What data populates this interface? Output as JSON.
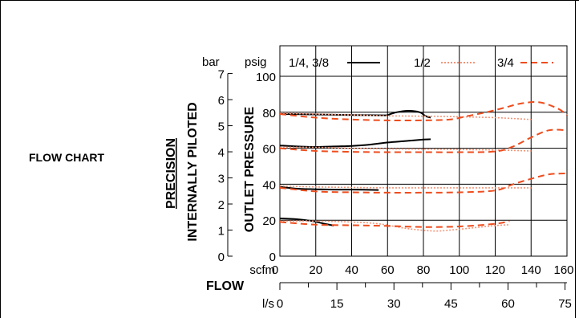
{
  "page": {
    "section_label": "FLOW CHART",
    "title_line1": "PRECISION",
    "title_line2": "INTERNALLY PILOTED"
  },
  "chart_data": {
    "type": "line",
    "ylabel": "OUTLET PRESSURE",
    "xlabel": "FLOW",
    "y_units": [
      "bar",
      "psig"
    ],
    "x_units": [
      "scfm",
      "l/s"
    ],
    "x_scfm_range": [
      0,
      160
    ],
    "x_scfm_ticks": [
      "0",
      "20",
      "40",
      "60",
      "80",
      "100",
      "120",
      "140",
      "160"
    ],
    "x_ls_ticks": [
      "0",
      "15",
      "30",
      "45",
      "60",
      "75"
    ],
    "y_psig_range": [
      0,
      100
    ],
    "y_psig_ticks": [
      "0",
      "20",
      "40",
      "60",
      "80",
      "100"
    ],
    "y_bar_ticks": [
      "0",
      "1",
      "2",
      "3",
      "4",
      "5",
      "6",
      "7"
    ],
    "grid": true,
    "legend_position": "top",
    "series": [
      {
        "name": "1/4, 3/8",
        "color": "#000000",
        "dash": "solid",
        "curves": [
          [
            [
              0,
              79
            ],
            [
              20,
              78.8
            ],
            [
              40,
              78.5
            ],
            [
              58,
              78.3
            ],
            [
              60,
              78.5
            ],
            [
              65,
              80
            ],
            [
              72,
              80.8
            ],
            [
              78,
              80
            ],
            [
              81,
              78
            ],
            [
              84,
              77
            ]
          ],
          [
            [
              0,
              61.5
            ],
            [
              10,
              61
            ],
            [
              20,
              60.7
            ],
            [
              30,
              61
            ],
            [
              40,
              61.3
            ],
            [
              50,
              62
            ],
            [
              60,
              63.2
            ],
            [
              70,
              64
            ],
            [
              80,
              64.8
            ],
            [
              84,
              65
            ]
          ],
          [
            [
              0,
              38.5
            ],
            [
              10,
              37.5
            ],
            [
              20,
              37.2
            ],
            [
              30,
              37
            ],
            [
              40,
              37
            ],
            [
              55,
              36.8
            ]
          ],
          [
            [
              0,
              21
            ],
            [
              10,
              20.5
            ],
            [
              18,
              19.5
            ],
            [
              25,
              18
            ],
            [
              30,
              17
            ]
          ]
        ]
      },
      {
        "name": "1/2",
        "color": "#f39579",
        "dash": "dotted",
        "curves": [
          [
            [
              0,
              79.5
            ],
            [
              20,
              79
            ],
            [
              40,
              78.5
            ],
            [
              60,
              78
            ],
            [
              80,
              77.8
            ],
            [
              100,
              77.5
            ],
            [
              120,
              77
            ],
            [
              140,
              76
            ]
          ],
          [
            [
              0,
              60.5
            ],
            [
              20,
              60.5
            ],
            [
              40,
              60
            ],
            [
              60,
              59.7
            ],
            [
              80,
              59.5
            ],
            [
              100,
              59.3
            ],
            [
              120,
              59
            ],
            [
              140,
              58.5
            ]
          ],
          [
            [
              0,
              39
            ],
            [
              20,
              38.5
            ],
            [
              40,
              38.2
            ],
            [
              60,
              38
            ],
            [
              80,
              38
            ],
            [
              100,
              38
            ],
            [
              120,
              38
            ],
            [
              140,
              38
            ]
          ],
          [
            [
              0,
              19.5
            ],
            [
              20,
              19.5
            ],
            [
              40,
              19
            ],
            [
              55,
              18
            ],
            [
              70,
              15.5
            ],
            [
              85,
              14
            ],
            [
              95,
              14.5
            ],
            [
              110,
              16
            ],
            [
              120,
              17
            ],
            [
              128,
              17.5
            ]
          ]
        ]
      },
      {
        "name": "3/4",
        "color": "#ee4d1e",
        "dash": "dashed",
        "curves": [
          [
            [
              0,
              79
            ],
            [
              20,
              77
            ],
            [
              40,
              76
            ],
            [
              60,
              75.5
            ],
            [
              80,
              75.5
            ],
            [
              95,
              76
            ],
            [
              105,
              78
            ],
            [
              115,
              80
            ],
            [
              125,
              82.5
            ],
            [
              135,
              85
            ],
            [
              145,
              85.5
            ],
            [
              155,
              82
            ],
            [
              160,
              78.5
            ]
          ],
          [
            [
              0,
              60
            ],
            [
              20,
              58.5
            ],
            [
              40,
              58
            ],
            [
              60,
              57.8
            ],
            [
              80,
              57.8
            ],
            [
              100,
              57.8
            ],
            [
              120,
              58.2
            ],
            [
              130,
              61
            ],
            [
              140,
              66
            ],
            [
              150,
              70
            ],
            [
              160,
              70
            ]
          ],
          [
            [
              0,
              38
            ],
            [
              20,
              36
            ],
            [
              40,
              35.5
            ],
            [
              60,
              35.3
            ],
            [
              80,
              35.3
            ],
            [
              100,
              35.5
            ],
            [
              120,
              36.5
            ],
            [
              130,
              40
            ],
            [
              140,
              43
            ],
            [
              150,
              45.5
            ],
            [
              160,
              46
            ]
          ],
          [
            [
              0,
              19
            ],
            [
              20,
              17.5
            ],
            [
              40,
              17.2
            ],
            [
              60,
              16.8
            ],
            [
              80,
              16.2
            ],
            [
              100,
              16.5
            ],
            [
              120,
              18
            ],
            [
              128,
              19.5
            ]
          ]
        ]
      }
    ]
  }
}
